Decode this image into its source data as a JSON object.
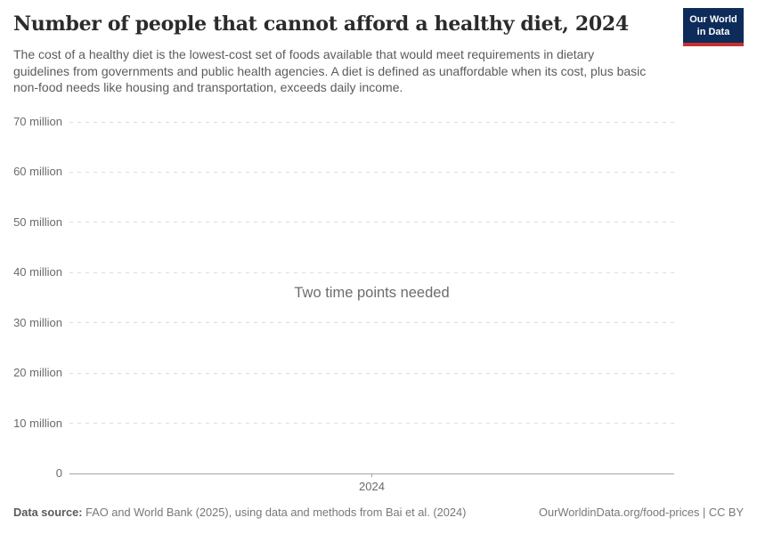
{
  "page": {
    "title": "Number of people that cannot afford a healthy diet, 2024",
    "subtitle": "The cost of a healthy diet is the lowest-cost set of foods available that would meet requirements in dietary guidelines from governments and public health agencies. A diet is defined as unaffordable when its cost, plus basic non-food needs like housing and transportation, exceeds daily income."
  },
  "logo": {
    "line1": "Our World",
    "line2": "in Data",
    "bg_color": "#0d2c5a",
    "accent_color": "#c5312f"
  },
  "chart_data": {
    "type": "line",
    "title": "Number of people that cannot afford a healthy diet, 2024",
    "series": [],
    "empty_message": "Two time points needed",
    "xlabel": "",
    "ylabel": "",
    "ylim": [
      0,
      70000000
    ],
    "grid": "horizontal-dashed",
    "legend": "none",
    "y_ticks": [
      {
        "value": 0,
        "label": "0"
      },
      {
        "value": 10000000,
        "label": "10 million"
      },
      {
        "value": 20000000,
        "label": "20 million"
      },
      {
        "value": 30000000,
        "label": "30 million"
      },
      {
        "value": 40000000,
        "label": "40 million"
      },
      {
        "value": 50000000,
        "label": "50 million"
      },
      {
        "value": 60000000,
        "label": "60 million"
      },
      {
        "value": 70000000,
        "label": "70 million"
      }
    ],
    "x_ticks": [
      {
        "label": "2024",
        "position_frac": 0.5
      }
    ]
  },
  "footer": {
    "datasource_label": "Data source:",
    "datasource_text": " FAO and World Bank (2025), using data and methods from Bai et al. (2024)",
    "url": "OurWorldinData.org/food-prices",
    "separator": " | ",
    "license": "CC BY"
  },
  "colors": {
    "title_text": "#2b2b2b",
    "subtitle_text": "#5b5b5b",
    "axis_text": "#6b6b6b",
    "gridline": "#dcdcdc",
    "axis_line": "#a3a3a3"
  }
}
